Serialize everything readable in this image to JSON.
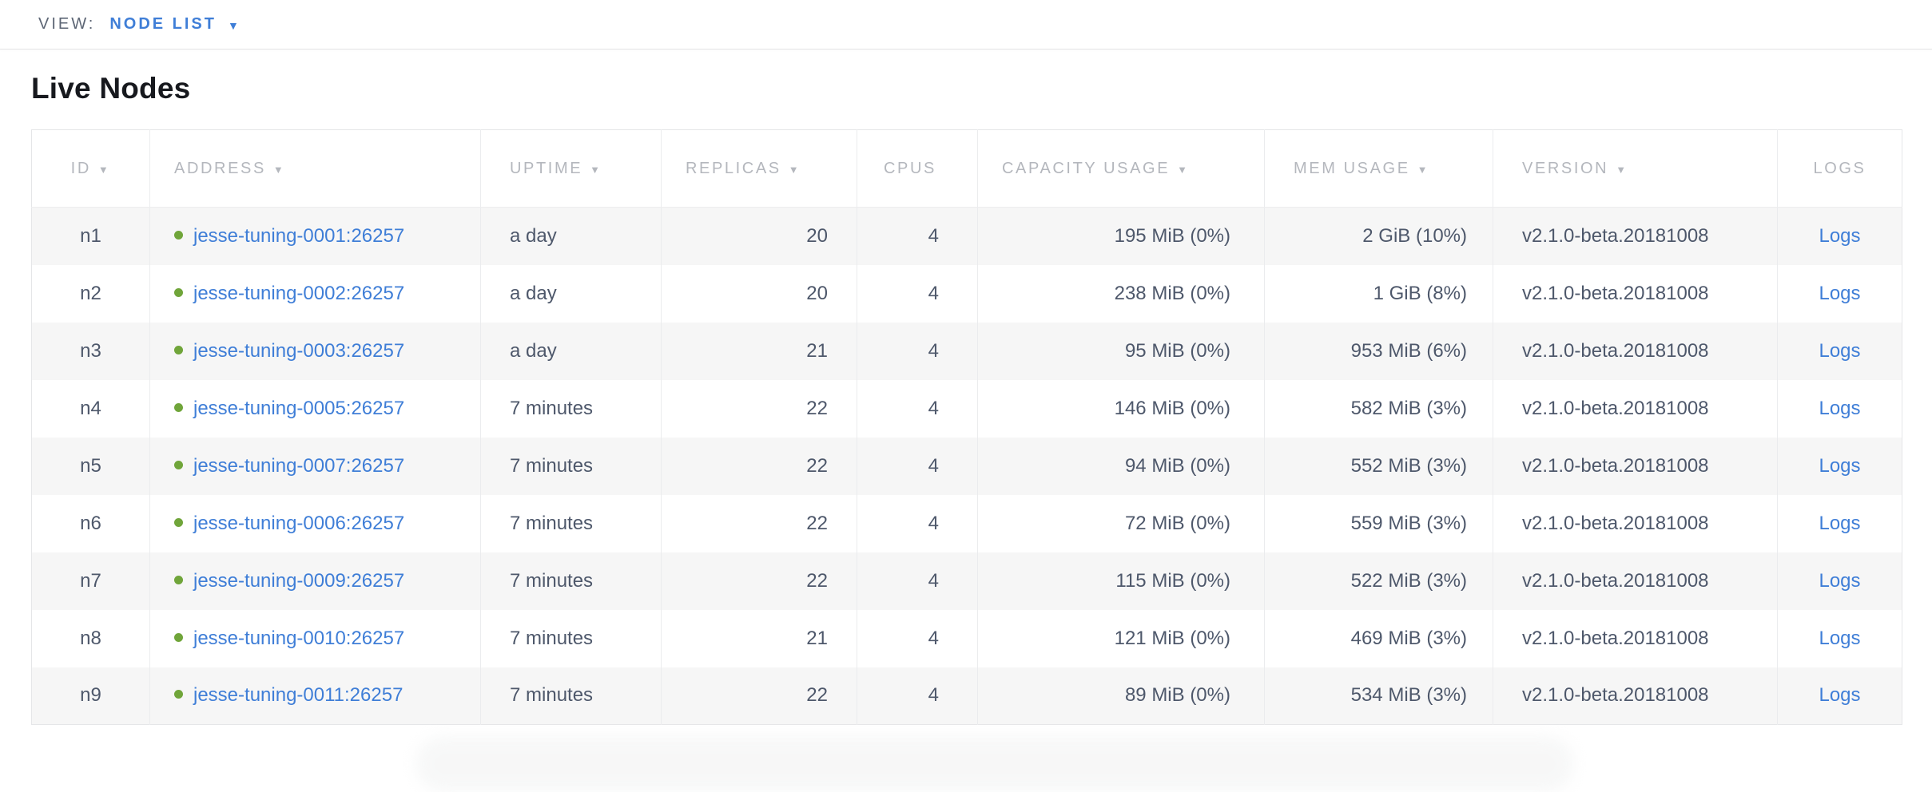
{
  "view_bar": {
    "label": "VIEW:",
    "selected": "NODE LIST"
  },
  "page": {
    "title": "Live Nodes"
  },
  "icons": {
    "dropdown_caret": "▼",
    "sort_desc": "▼",
    "healthy_dot": "status-healthy-dot"
  },
  "colors": {
    "accent_blue": "#3f7ed7",
    "healthy_green": "#70a53a",
    "header_gray": "#b4b7bd",
    "text_dark": "#4e586b",
    "stripe": "#f6f6f6",
    "border": "#e5e6e8"
  },
  "table": {
    "columns": [
      {
        "field": "id",
        "label": "ID",
        "sortable": true
      },
      {
        "field": "address",
        "label": "ADDRESS",
        "sortable": true
      },
      {
        "field": "uptime",
        "label": "UPTIME",
        "sortable": true
      },
      {
        "field": "replicas",
        "label": "REPLICAS",
        "sortable": true
      },
      {
        "field": "cpus",
        "label": "CPUS",
        "sortable": false
      },
      {
        "field": "capacity",
        "label": "CAPACITY USAGE",
        "sortable": true
      },
      {
        "field": "mem",
        "label": "MEM USAGE",
        "sortable": true
      },
      {
        "field": "version",
        "label": "VERSION",
        "sortable": true
      },
      {
        "field": "logs",
        "label": "LOGS",
        "sortable": false
      }
    ],
    "rows": [
      {
        "id": "n1",
        "address": "jesse-tuning-0001:26257",
        "uptime": "a day",
        "replicas": "20",
        "cpus": "4",
        "capacity": "195 MiB (0%)",
        "mem": "2 GiB (10%)",
        "version": "v2.1.0-beta.20181008",
        "logs": "Logs"
      },
      {
        "id": "n2",
        "address": "jesse-tuning-0002:26257",
        "uptime": "a day",
        "replicas": "20",
        "cpus": "4",
        "capacity": "238 MiB (0%)",
        "mem": "1 GiB (8%)",
        "version": "v2.1.0-beta.20181008",
        "logs": "Logs"
      },
      {
        "id": "n3",
        "address": "jesse-tuning-0003:26257",
        "uptime": "a day",
        "replicas": "21",
        "cpus": "4",
        "capacity": "95 MiB (0%)",
        "mem": "953 MiB (6%)",
        "version": "v2.1.0-beta.20181008",
        "logs": "Logs"
      },
      {
        "id": "n4",
        "address": "jesse-tuning-0005:26257",
        "uptime": "7 minutes",
        "replicas": "22",
        "cpus": "4",
        "capacity": "146 MiB (0%)",
        "mem": "582 MiB (3%)",
        "version": "v2.1.0-beta.20181008",
        "logs": "Logs"
      },
      {
        "id": "n5",
        "address": "jesse-tuning-0007:26257",
        "uptime": "7 minutes",
        "replicas": "22",
        "cpus": "4",
        "capacity": "94 MiB (0%)",
        "mem": "552 MiB (3%)",
        "version": "v2.1.0-beta.20181008",
        "logs": "Logs"
      },
      {
        "id": "n6",
        "address": "jesse-tuning-0006:26257",
        "uptime": "7 minutes",
        "replicas": "22",
        "cpus": "4",
        "capacity": "72 MiB (0%)",
        "mem": "559 MiB (3%)",
        "version": "v2.1.0-beta.20181008",
        "logs": "Logs"
      },
      {
        "id": "n7",
        "address": "jesse-tuning-0009:26257",
        "uptime": "7 minutes",
        "replicas": "22",
        "cpus": "4",
        "capacity": "115 MiB (0%)",
        "mem": "522 MiB (3%)",
        "version": "v2.1.0-beta.20181008",
        "logs": "Logs"
      },
      {
        "id": "n8",
        "address": "jesse-tuning-0010:26257",
        "uptime": "7 minutes",
        "replicas": "21",
        "cpus": "4",
        "capacity": "121 MiB (0%)",
        "mem": "469 MiB (3%)",
        "version": "v2.1.0-beta.20181008",
        "logs": "Logs"
      },
      {
        "id": "n9",
        "address": "jesse-tuning-0011:26257",
        "uptime": "7 minutes",
        "replicas": "22",
        "cpus": "4",
        "capacity": "89 MiB (0%)",
        "mem": "534 MiB (3%)",
        "version": "v2.1.0-beta.20181008",
        "logs": "Logs"
      }
    ]
  }
}
